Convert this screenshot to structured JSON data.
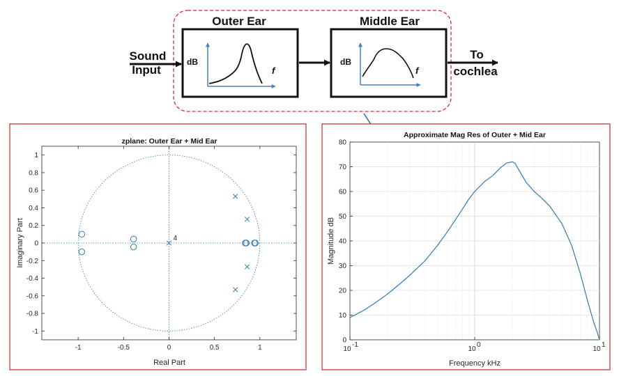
{
  "diagram": {
    "outer_ear": {
      "title": "Outer Ear",
      "y_axis": "dB",
      "x_axis": "f"
    },
    "middle_ear": {
      "title": "Middle Ear",
      "y_axis": "dB",
      "x_axis": "f"
    },
    "input_label_line1": "Sound",
    "input_label_line2": "Input",
    "output_label_line1": "To",
    "output_label_line2": "cochlea",
    "colors": {
      "group_border": "#e8202a",
      "pointer_arrow": "#2e74b5",
      "mini_axes": "#4a7ec0"
    }
  },
  "chart_data": [
    {
      "type": "scatter",
      "title": "zplane: Outer Ear + Mid Ear",
      "xlabel": "Real Part",
      "ylabel": "Imaginary Part",
      "xlim": [
        -1.4,
        1.4
      ],
      "ylim": [
        -1.1,
        1.1
      ],
      "xticks": [
        "-1",
        "-0.5",
        "0",
        "0.5",
        "1"
      ],
      "yticks": [
        "1",
        "0.8",
        "0.6",
        "0.4",
        "0.2",
        "0",
        "-0.2",
        "-0.4",
        "-0.6",
        "-0.8",
        "-1"
      ],
      "unit_circle": true,
      "zeros": [
        [
          -0.96,
          0.1
        ],
        [
          -0.96,
          -0.1
        ],
        [
          -0.39,
          0.045
        ],
        [
          -0.39,
          -0.045
        ],
        [
          0.84,
          0.0
        ],
        [
          0.85,
          0.0
        ],
        [
          0.94,
          0.0
        ],
        [
          0.95,
          0.0
        ]
      ],
      "poles": [
        [
          0.0,
          0.0
        ],
        [
          0.73,
          0.53
        ],
        [
          0.73,
          -0.53
        ],
        [
          0.86,
          0.27
        ],
        [
          0.86,
          -0.27
        ]
      ],
      "annotations": [
        {
          "text": "4",
          "x": 0.0,
          "y": 0.0
        }
      ],
      "color": "#2e7ab5"
    },
    {
      "type": "line",
      "title": "Approximate Mag Res of Outer + Mid Ear",
      "xlabel": "Frequency kHz",
      "ylabel": "Magnitude dB",
      "x_scale": "log",
      "xlim": [
        0.1,
        10
      ],
      "ylim": [
        0,
        80
      ],
      "yticks": [
        "0",
        "10",
        "20",
        "30",
        "40",
        "50",
        "60",
        "70",
        "80"
      ],
      "xtick_labels": [
        {
          "base": "10",
          "exp": "-1"
        },
        {
          "base": "10",
          "exp": "0"
        },
        {
          "base": "10",
          "exp": "1"
        }
      ],
      "grid": true,
      "series": [
        {
          "x": [
            0.1,
            0.13,
            0.16,
            0.2,
            0.25,
            0.3,
            0.4,
            0.5,
            0.6,
            0.7,
            0.8,
            0.9,
            1.0,
            1.2,
            1.4,
            1.6,
            1.8,
            2.0,
            2.1,
            2.3,
            2.6,
            3.0,
            3.5,
            4.0,
            5.0,
            6.0,
            7.0,
            8.0,
            9.0,
            9.6,
            10.0
          ],
          "y": [
            9,
            12,
            15,
            18.5,
            22.5,
            26,
            32,
            38,
            43.5,
            48.5,
            53,
            57,
            60,
            64,
            66.5,
            69.5,
            71.5,
            72,
            71.5,
            68,
            63.5,
            60,
            57,
            54,
            47,
            38,
            27,
            16,
            7,
            3,
            0
          ]
        }
      ],
      "color": "#2e7ab5"
    }
  ]
}
